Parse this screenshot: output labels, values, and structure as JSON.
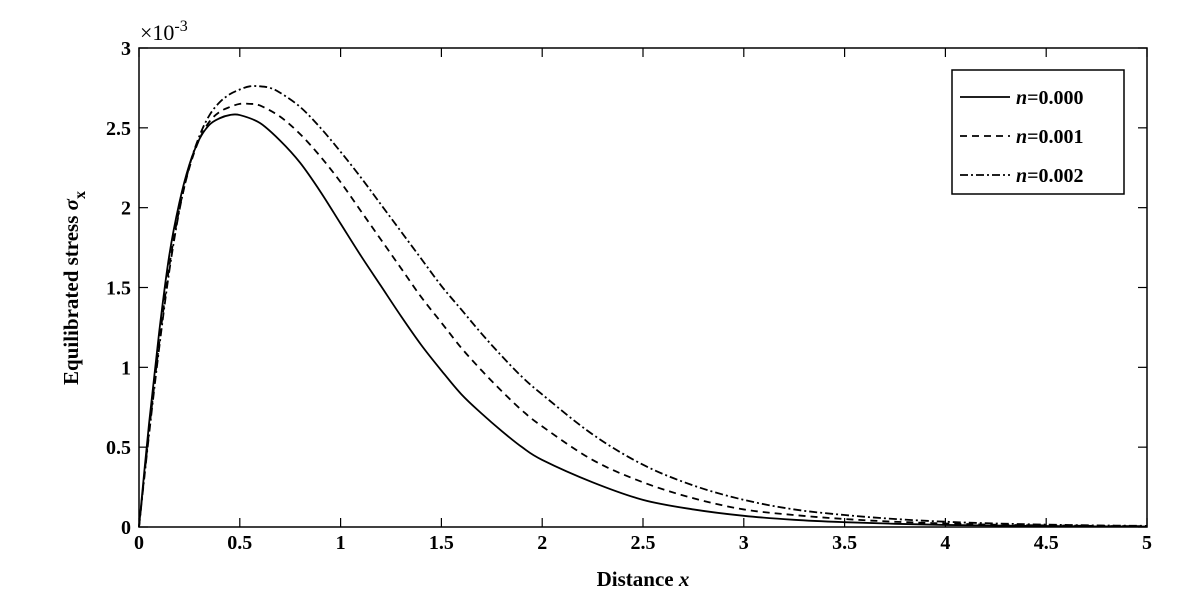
{
  "chart_data": {
    "type": "line",
    "xlabel": "Distance x",
    "xlabel_text": "Distance ",
    "xlabel_var": "x",
    "ylabel": "Equilibrated stress σx",
    "ylabel_text": "Equilibrated stress ",
    "ylabel_var": "σ",
    "ylabel_sub": "x",
    "y_exponent_prefix": "×10",
    "y_exponent_power": "-3",
    "xlim": [
      0,
      5
    ],
    "ylim": [
      0,
      3
    ],
    "y_scale_factor": 0.001,
    "x_ticks": [
      "0",
      "0.5",
      "1",
      "1.5",
      "2",
      "2.5",
      "3",
      "3.5",
      "4",
      "4.5",
      "5"
    ],
    "y_ticks": [
      "0",
      "0.5",
      "1",
      "1.5",
      "2",
      "2.5",
      "3"
    ],
    "grid": false,
    "legend_position": "top-right",
    "series": [
      {
        "name": "n=0.000",
        "name_var": "n",
        "name_value": "=0.000",
        "style": "solid",
        "x": [
          0,
          0.05,
          0.1,
          0.15,
          0.2,
          0.25,
          0.3,
          0.35,
          0.4,
          0.45,
          0.5,
          0.6,
          0.7,
          0.8,
          0.9,
          1.0,
          1.1,
          1.2,
          1.3,
          1.4,
          1.5,
          1.6,
          1.7,
          1.8,
          1.9,
          2.0,
          2.25,
          2.5,
          2.75,
          3.0,
          3.25,
          3.5,
          3.75,
          4.0,
          4.25,
          4.5,
          4.75,
          5.0
        ],
        "y": [
          0,
          0.65,
          1.22,
          1.7,
          2.03,
          2.27,
          2.43,
          2.52,
          2.56,
          2.58,
          2.58,
          2.53,
          2.42,
          2.28,
          2.1,
          1.9,
          1.7,
          1.51,
          1.32,
          1.14,
          0.98,
          0.83,
          0.71,
          0.6,
          0.5,
          0.42,
          0.28,
          0.17,
          0.11,
          0.07,
          0.045,
          0.03,
          0.02,
          0.013,
          0.009,
          0.006,
          0.004,
          0.003
        ]
      },
      {
        "name": "n=0.001",
        "name_var": "n",
        "name_value": "=0.001",
        "style": "dashed",
        "x": [
          0,
          0.05,
          0.1,
          0.15,
          0.2,
          0.25,
          0.3,
          0.35,
          0.4,
          0.45,
          0.5,
          0.55,
          0.6,
          0.7,
          0.8,
          0.9,
          1.0,
          1.1,
          1.2,
          1.3,
          1.4,
          1.5,
          1.6,
          1.7,
          1.8,
          1.9,
          2.0,
          2.25,
          2.5,
          2.75,
          3.0,
          3.25,
          3.5,
          3.75,
          4.0,
          4.25,
          4.5,
          4.75,
          5.0
        ],
        "y": [
          0,
          0.6,
          1.15,
          1.63,
          1.99,
          2.25,
          2.43,
          2.54,
          2.6,
          2.63,
          2.65,
          2.65,
          2.64,
          2.57,
          2.46,
          2.32,
          2.16,
          1.98,
          1.8,
          1.62,
          1.44,
          1.28,
          1.12,
          0.98,
          0.85,
          0.73,
          0.63,
          0.42,
          0.28,
          0.18,
          0.11,
          0.075,
          0.05,
          0.033,
          0.022,
          0.014,
          0.01,
          0.007,
          0.005
        ]
      },
      {
        "name": "n=0.002",
        "name_var": "n",
        "name_value": "=0.002",
        "style": "dashdot",
        "x": [
          0,
          0.05,
          0.1,
          0.15,
          0.2,
          0.25,
          0.3,
          0.35,
          0.4,
          0.45,
          0.5,
          0.55,
          0.6,
          0.65,
          0.7,
          0.8,
          0.9,
          1.0,
          1.1,
          1.2,
          1.3,
          1.4,
          1.5,
          1.6,
          1.7,
          1.8,
          1.9,
          2.0,
          2.25,
          2.5,
          2.75,
          3.0,
          3.25,
          3.5,
          3.75,
          4.0,
          4.25,
          4.5,
          4.75,
          5.0
        ],
        "y": [
          0,
          0.58,
          1.12,
          1.6,
          1.98,
          2.26,
          2.45,
          2.58,
          2.66,
          2.71,
          2.74,
          2.76,
          2.76,
          2.75,
          2.72,
          2.63,
          2.5,
          2.35,
          2.19,
          2.02,
          1.85,
          1.68,
          1.51,
          1.36,
          1.21,
          1.07,
          0.94,
          0.83,
          0.58,
          0.39,
          0.26,
          0.17,
          0.11,
          0.075,
          0.05,
          0.033,
          0.022,
          0.015,
          0.01,
          0.007
        ]
      }
    ]
  }
}
